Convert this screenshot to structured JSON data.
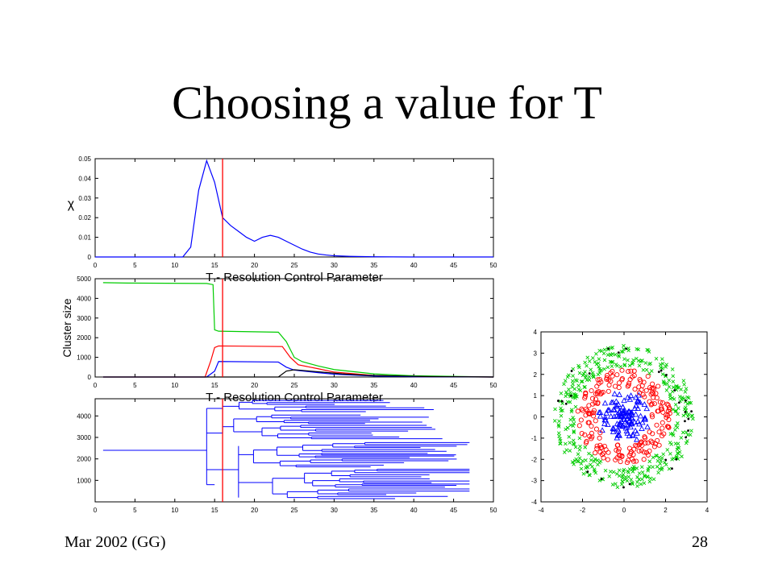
{
  "slide": {
    "title": "Choosing a value for T",
    "footer_left": "Mar 2002 (GG)",
    "page_number": "28"
  },
  "colors": {
    "blue": "#0000ff",
    "red": "#ff0000",
    "green": "#00cc00",
    "black": "#000000"
  },
  "chart_data": [
    {
      "type": "line",
      "xlabel": "T - Resolution Control Parameter",
      "ylabel": "χ",
      "xlim": [
        0,
        50
      ],
      "ylim": [
        0,
        0.05
      ],
      "xticks": [
        0,
        5,
        10,
        15,
        20,
        25,
        30,
        35,
        40,
        45,
        50
      ],
      "yticks": [
        0,
        0.01,
        0.02,
        0.03,
        0.04,
        0.05
      ],
      "marker_line_x": 16,
      "series": [
        {
          "color": "#0000ff",
          "x": [
            0,
            11,
            12,
            13,
            14,
            15,
            16,
            17,
            18,
            19,
            20,
            21,
            22,
            23,
            24,
            25,
            26,
            27,
            28,
            29,
            30,
            32,
            35,
            40,
            50
          ],
          "y": [
            0,
            0,
            0.005,
            0.034,
            0.049,
            0.038,
            0.02,
            0.016,
            0.013,
            0.01,
            0.008,
            0.01,
            0.011,
            0.01,
            0.008,
            0.006,
            0.004,
            0.0025,
            0.0015,
            0.001,
            0.0006,
            0.0003,
            0.0001,
            0,
            0
          ]
        }
      ]
    },
    {
      "type": "line",
      "xlabel": "T - Resolution Control Parameter",
      "ylabel": "Cluster size",
      "xlim": [
        0,
        50
      ],
      "ylim": [
        0,
        5000
      ],
      "xticks": [
        0,
        5,
        10,
        15,
        20,
        25,
        30,
        35,
        40,
        45,
        50
      ],
      "yticks": [
        0,
        1000,
        2000,
        3000,
        4000,
        5000
      ],
      "marker_line_x": 16,
      "series": [
        {
          "color": "#00cc00",
          "x": [
            1,
            4,
            14,
            14.8,
            15,
            15.5,
            23,
            24,
            25,
            26,
            28,
            30,
            35,
            40,
            50
          ],
          "y": [
            4800,
            4780,
            4760,
            4700,
            2400,
            2330,
            2280,
            1800,
            1000,
            780,
            560,
            380,
            160,
            60,
            0
          ]
        },
        {
          "color": "#ff0000",
          "x": [
            1,
            13.8,
            14.5,
            15,
            15.5,
            23.5,
            24.5,
            25.5,
            28,
            30,
            35,
            40,
            50
          ],
          "y": [
            0,
            0,
            800,
            1500,
            1580,
            1550,
            1000,
            620,
            420,
            250,
            80,
            20,
            0
          ]
        },
        {
          "color": "#0000ff",
          "x": [
            1,
            14,
            15,
            15.5,
            23,
            24,
            25,
            28,
            30,
            35,
            40,
            50
          ],
          "y": [
            0,
            0,
            300,
            790,
            760,
            500,
            350,
            220,
            140,
            50,
            15,
            0
          ]
        },
        {
          "color": "#000000",
          "x": [
            1,
            23,
            24,
            25,
            27,
            29,
            31,
            34,
            38,
            42,
            50
          ],
          "y": [
            0,
            0,
            300,
            370,
            300,
            230,
            160,
            90,
            50,
            20,
            0
          ]
        }
      ]
    },
    {
      "type": "dendrogram",
      "xlim": [
        0,
        50
      ],
      "ylim": [
        0,
        4800
      ],
      "xticks": [
        0,
        5,
        10,
        15,
        20,
        25,
        30,
        35,
        40,
        45,
        50
      ],
      "yticks": [
        1000,
        2000,
        3000,
        4000
      ],
      "marker_line_x": 16,
      "series": [
        {
          "color": "#0000ff",
          "segments": "tree"
        }
      ]
    },
    {
      "type": "scatter",
      "xlim": [
        -4,
        4
      ],
      "ylim": [
        -4,
        4
      ],
      "xticks": [
        -4,
        -2,
        0,
        2,
        4
      ],
      "yticks": [
        -4,
        -3,
        -2,
        -1,
        0,
        1,
        2,
        3,
        4
      ],
      "series": [
        {
          "color": "#0000ff",
          "marker": "triangle",
          "ring_radius": [
            0.1,
            1.25
          ],
          "count": 120
        },
        {
          "color": "#ff0000",
          "marker": "circle",
          "ring_radius": [
            1.35,
            2.25
          ],
          "count": 200
        },
        {
          "color": "#00cc00",
          "marker": "x",
          "ring_radius": [
            2.35,
            3.35
          ],
          "count": 380
        },
        {
          "color": "#000000",
          "marker": "dot",
          "ring_radius": [
            2.6,
            3.4
          ],
          "count": 28
        }
      ]
    }
  ]
}
